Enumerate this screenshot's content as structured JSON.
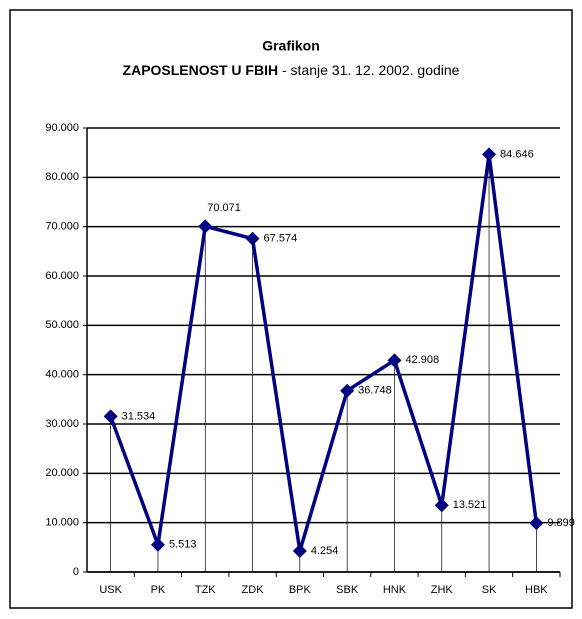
{
  "chart_data": {
    "type": "line",
    "title": "Grafikon",
    "subtitle": [
      "ZAPOSLENOST U FBIH",
      " - stanje 31. 12. 2002. godine"
    ],
    "categories": [
      "USK",
      "PK",
      "TZK",
      "ZDK",
      "BPK",
      "SBK",
      "HNK",
      "ZHK",
      "SK",
      "HBK"
    ],
    "values": [
      31534,
      5513,
      70071,
      67574,
      4254,
      36748,
      42908,
      13521,
      84646,
      9899
    ],
    "value_labels": [
      "31.534",
      "5.513",
      "70.071",
      "67.574",
      "4.254",
      "36.748",
      "42.908",
      "13.521",
      "84.646",
      "9.899"
    ],
    "color": "#000080",
    "ylim": [
      0,
      90000
    ],
    "yticks": [
      0,
      {
        "value": 10000,
        "label": "10.000"
      },
      {
        "value": 20000,
        "label": "20.000"
      },
      {
        "value": 30000,
        "label": "30.000"
      },
      {
        "value": 40000,
        "label": "40.000"
      },
      {
        "value": 50000,
        "label": "50.000"
      },
      {
        "value": 60000,
        "label": "60.000"
      },
      {
        "value": 70000,
        "label": "70.000"
      },
      {
        "value": 80000,
        "label": "80.000"
      },
      {
        "value": 90000,
        "label": "90.000"
      }
    ],
    "grid": true
  }
}
